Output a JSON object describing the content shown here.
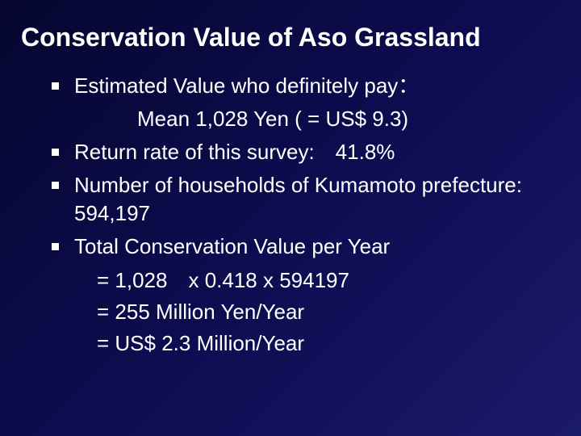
{
  "slide": {
    "background_gradient": [
      "#060630",
      "#0c0c50",
      "#1a1a6a"
    ],
    "text_color": "#ffffff",
    "title": "Conservation Value of Aso Grassland",
    "title_fontsize": 32,
    "body_fontsize": 26,
    "bullet_marker": "square",
    "bullet_color": "#ffffff",
    "bullets": [
      {
        "text": "Estimated Value who definitely pay：",
        "sub": "Mean 1,028 Yen ( = US$ 9.3)"
      },
      {
        "text": "Return rate of this survey:　41.8%"
      },
      {
        "text": "Number of households of Kumamoto prefecture:　594,197"
      },
      {
        "text": "Total Conservation Value per Year",
        "calc": [
          "= 1,028　x 0.418 x 594197",
          "= 255 Million Yen/Year",
          "= US$ 2.3 Million/Year"
        ]
      }
    ]
  }
}
